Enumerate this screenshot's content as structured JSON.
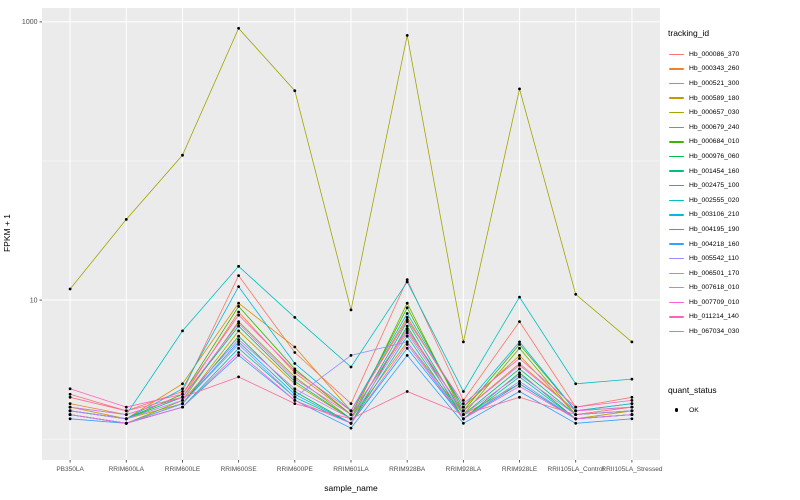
{
  "colors": {
    "panel_bg": "#EBEBEB",
    "grid": "#FFFFFF",
    "tick_text": "#4D4D4D",
    "axis_title_text": "#000000",
    "point_color": "#000000"
  },
  "chart_data": {
    "type": "line",
    "title": "",
    "xlabel": "sample_name",
    "ylabel": "FPKM + 1",
    "y_scale": "log10",
    "y_ticks": [
      10,
      1000
    ],
    "y_tick_labels": [
      "10",
      "1000"
    ],
    "y_minor_ticks": [
      1,
      100
    ],
    "ylim_log": [
      -0.15,
      3.1
    ],
    "legend_title": "tracking_id",
    "categories": [
      "PB350LA",
      "RRIM600LA",
      "RRIM600LE",
      "RRIM600SE",
      "RRIM600PE",
      "RRIM601LA",
      "RRIM928BA",
      "RRIM928LA",
      "RRIM928LE",
      "RRII105LA_Control",
      "RRII105LA_Stressed"
    ],
    "series": [
      {
        "name": "Hb_000086_370",
        "color": "#F8766D",
        "values": [
          2.1,
          1.6,
          2.2,
          15.0,
          4.2,
          1.8,
          14.0,
          1.9,
          7.0,
          1.7,
          2.0
        ]
      },
      {
        "name": "Hb_000343_260",
        "color": "#EA8331",
        "values": [
          1.8,
          1.5,
          2.0,
          8.2,
          3.0,
          1.5,
          6.0,
          1.6,
          3.5,
          1.6,
          1.8
        ]
      },
      {
        "name": "Hb_000521_300",
        "color": "#D89000",
        "values": [
          1.7,
          1.4,
          2.5,
          9.5,
          4.6,
          1.6,
          7.5,
          1.7,
          4.0,
          1.5,
          1.7
        ]
      },
      {
        "name": "Hb_000589_180",
        "color": "#C09B00",
        "values": [
          1.6,
          1.4,
          1.8,
          6.0,
          2.5,
          1.4,
          5.0,
          1.5,
          2.5,
          1.4,
          1.6
        ]
      },
      {
        "name": "Hb_000657_030",
        "color": "#A3A500",
        "values": [
          12,
          38,
          110,
          900,
          320,
          8.5,
          800,
          5.0,
          330,
          11,
          5.0
        ]
      },
      {
        "name": "Hb_000679_240",
        "color": "#7CAE00",
        "values": [
          1.5,
          1.3,
          1.9,
          7.0,
          2.8,
          1.4,
          9.5,
          1.5,
          4.5,
          1.5,
          1.6
        ]
      },
      {
        "name": "Hb_000684_010",
        "color": "#39B600",
        "values": [
          1.6,
          1.4,
          2.1,
          9.0,
          3.2,
          1.5,
          8.8,
          1.6,
          4.8,
          1.6,
          1.7
        ]
      },
      {
        "name": "Hb_000976_060",
        "color": "#00BB4E",
        "values": [
          1.5,
          1.3,
          1.8,
          5.5,
          2.2,
          1.3,
          6.5,
          1.4,
          3.0,
          1.4,
          1.5
        ]
      },
      {
        "name": "Hb_001454_160",
        "color": "#00BF7D",
        "values": [
          1.6,
          1.4,
          2.0,
          6.5,
          2.6,
          1.4,
          7.0,
          1.5,
          3.2,
          1.5,
          1.6
        ]
      },
      {
        "name": "Hb_002475_100",
        "color": "#00C1A3",
        "values": [
          1.5,
          1.3,
          1.7,
          4.5,
          2.0,
          1.3,
          5.5,
          1.4,
          2.8,
          1.4,
          1.5
        ]
      },
      {
        "name": "Hb_002555_020",
        "color": "#00BFC4",
        "values": [
          1.7,
          1.5,
          6.0,
          17.5,
          7.5,
          3.3,
          13.5,
          2.2,
          10.5,
          2.5,
          2.7
        ]
      },
      {
        "name": "Hb_003106_210",
        "color": "#00BAE0",
        "values": [
          1.6,
          1.4,
          2.3,
          12.5,
          3.5,
          1.6,
          8.0,
          1.7,
          5.0,
          1.6,
          1.8
        ]
      },
      {
        "name": "Hb_004195_190",
        "color": "#00B0F6",
        "values": [
          1.5,
          1.3,
          1.8,
          5.0,
          2.1,
          1.3,
          4.5,
          1.4,
          2.5,
          1.4,
          1.5
        ]
      },
      {
        "name": "Hb_004218_160",
        "color": "#35A2FF",
        "values": [
          1.4,
          1.3,
          1.7,
          4.0,
          1.9,
          1.2,
          4.0,
          1.3,
          2.2,
          1.3,
          1.4
        ]
      },
      {
        "name": "Hb_005542_110",
        "color": "#9590FF",
        "values": [
          1.5,
          1.3,
          1.8,
          4.8,
          2.0,
          4.0,
          5.0,
          1.4,
          2.6,
          1.4,
          1.5
        ]
      },
      {
        "name": "Hb_006501_170",
        "color": "#C77CFF",
        "values": [
          1.6,
          1.4,
          1.9,
          5.2,
          2.3,
          1.4,
          5.8,
          1.5,
          2.9,
          1.5,
          1.6
        ]
      },
      {
        "name": "Hb_007618_010",
        "color": "#E76BF3",
        "values": [
          1.7,
          1.5,
          2.0,
          6.8,
          2.7,
          1.5,
          6.2,
          1.6,
          3.4,
          1.6,
          1.7
        ]
      },
      {
        "name": "Hb_007709_010",
        "color": "#FA62DB",
        "values": [
          1.5,
          1.3,
          1.7,
          4.2,
          1.9,
          1.3,
          4.8,
          1.4,
          2.4,
          1.4,
          1.5
        ]
      },
      {
        "name": "Hb_011214_140",
        "color": "#FF62BC",
        "values": [
          2.3,
          1.7,
          2.1,
          7.8,
          3.1,
          1.6,
          7.2,
          1.8,
          3.8,
          1.7,
          1.9
        ]
      },
      {
        "name": "Hb_067034_030",
        "color": "#FF6A98",
        "values": [
          2.0,
          1.6,
          2.0,
          2.8,
          1.8,
          1.4,
          2.2,
          1.5,
          2.0,
          1.5,
          1.7
        ]
      }
    ],
    "quant_legend": {
      "title": "quant_status",
      "items": [
        {
          "label": "OK",
          "marker": "point",
          "color": "#000000"
        }
      ]
    }
  }
}
